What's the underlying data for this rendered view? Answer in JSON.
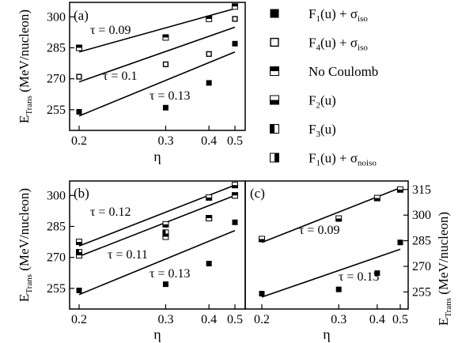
{
  "chart_data": [
    {
      "type": "scatter",
      "panel": "(a)",
      "xlabel": "η",
      "ylabel_main": "E",
      "ylabel_sub": "Trans",
      "ylabel_rest": " (MeV/nucleon)",
      "xlim": [
        0.2,
        0.5
      ],
      "ylim": [
        245,
        307
      ],
      "x_scale": "reciprocal",
      "xticks": [
        0.2,
        0.3,
        0.4,
        0.5
      ],
      "xtick_labels": [
        "0.2",
        "0.3",
        "0.4",
        "0.5"
      ],
      "yticks": [
        255,
        270,
        285,
        300
      ],
      "ytick_labels": [
        "255",
        "270",
        "285",
        "300"
      ],
      "y_axis_side": "left",
      "series": [
        {
          "marker": "filled",
          "x": [
            0.2,
            0.3,
            0.4,
            0.5
          ],
          "y": [
            254,
            256,
            268,
            287
          ]
        },
        {
          "marker": "open",
          "x": [
            0.2,
            0.3,
            0.4,
            0.5
          ],
          "y": [
            271,
            277,
            282,
            299
          ]
        },
        {
          "marker": "top-half",
          "x": [
            0.2,
            0.3,
            0.4,
            0.5
          ],
          "y": [
            285,
            290,
            299,
            305
          ]
        }
      ],
      "fit_lines": [
        {
          "label": "τ = 0.09",
          "x": [
            0.2,
            0.5
          ],
          "y": [
            283,
            304
          ]
        },
        {
          "label": "τ = 0.1",
          "x": [
            0.2,
            0.5
          ],
          "y": [
            268.5,
            295
          ]
        },
        {
          "label": "τ = 0.13",
          "x": [
            0.2,
            0.5
          ],
          "y": [
            252,
            283
          ]
        }
      ]
    },
    {
      "type": "scatter",
      "panel": "(b)",
      "xlabel": "η",
      "ylabel_main": "E",
      "ylabel_sub": "Trans",
      "ylabel_rest": " (MeV/nucleon)",
      "xlim": [
        0.2,
        0.5
      ],
      "ylim": [
        245,
        307
      ],
      "x_scale": "reciprocal",
      "xticks": [
        0.2,
        0.3,
        0.4,
        0.5
      ],
      "xtick_labels": [
        "0.2",
        "0.3",
        "0.4",
        "0.5"
      ],
      "yticks": [
        255,
        270,
        285,
        300
      ],
      "ytick_labels": [
        "255",
        "270",
        "285",
        "300"
      ],
      "y_axis_side": "left",
      "series": [
        {
          "marker": "filled",
          "x": [
            0.2,
            0.3,
            0.4,
            0.5
          ],
          "y": [
            254,
            257,
            267,
            287
          ]
        },
        {
          "marker": "bottom-half",
          "x": [
            0.2,
            0.3,
            0.4,
            0.5
          ],
          "y": [
            277.5,
            286,
            299,
            305
          ]
        },
        {
          "marker": "left-half",
          "x": [
            0.2,
            0.3,
            0.4,
            0.5
          ],
          "y": [
            272.5,
            282,
            289,
            300
          ]
        },
        {
          "marker": "top-half",
          "x": [
            0.2,
            0.3,
            0.4,
            0.5
          ],
          "y": [
            271,
            280,
            289,
            300
          ]
        }
      ],
      "fit_lines": [
        {
          "label": "τ = 0.12",
          "x": [
            0.2,
            0.5
          ],
          "y": [
            275.5,
            305
          ]
        },
        {
          "label": "τ = 0.11",
          "x": [
            0.2,
            0.5
          ],
          "y": [
            270.5,
            300
          ]
        },
        {
          "label": "τ = 0.13",
          "x": [
            0.2,
            0.5
          ],
          "y": [
            252,
            283
          ]
        }
      ]
    },
    {
      "type": "scatter",
      "panel": "(c)",
      "xlabel": "η",
      "ylabel_main": "E",
      "ylabel_sub": "Trans",
      "ylabel_rest": " (MeV/nucleon)",
      "xlim": [
        0.2,
        0.5
      ],
      "ylim": [
        245,
        320
      ],
      "x_scale": "reciprocal",
      "xticks": [
        0.2,
        0.3,
        0.4,
        0.5
      ],
      "xtick_labels": [
        "0.2",
        "0.3",
        "0.4",
        "0.5"
      ],
      "yticks": [
        255,
        270,
        285,
        300,
        315
      ],
      "ytick_labels": [
        "255",
        "270",
        "285",
        "300",
        "315"
      ],
      "y_axis_side": "right",
      "series": [
        {
          "marker": "filled",
          "x": [
            0.2,
            0.3,
            0.4,
            0.5
          ],
          "y": [
            254,
            256.5,
            266,
            284
          ]
        },
        {
          "marker": "bottom-half",
          "x": [
            0.2,
            0.3,
            0.4,
            0.5
          ],
          "y": [
            286,
            298,
            310,
            315
          ]
        }
      ],
      "fit_lines": [
        {
          "label": "τ = 0.09",
          "x": [
            0.2,
            0.5
          ],
          "y": [
            284,
            316
          ]
        },
        {
          "label": "τ = 0.13",
          "x": [
            0.2,
            0.5
          ],
          "y": [
            252,
            280
          ]
        }
      ]
    }
  ],
  "legend": {
    "placement": "top-right",
    "entries": [
      {
        "marker": "filled",
        "main": "F",
        "sub1": "1",
        "arg": "(u) + σ",
        "sub2": "iso"
      },
      {
        "marker": "open",
        "main": "F",
        "sub1": "4",
        "arg": "(u) + σ",
        "sub2": "iso"
      },
      {
        "marker": "top-half",
        "main": "No Coulomb",
        "sub1": "",
        "arg": "",
        "sub2": ""
      },
      {
        "marker": "bottom-half",
        "main": "F",
        "sub1": "2",
        "arg": "(u)",
        "sub2": ""
      },
      {
        "marker": "left-half",
        "main": "F",
        "sub1": "3",
        "arg": "(u)",
        "sub2": ""
      },
      {
        "marker": "right-half",
        "main": "F",
        "sub1": "1",
        "arg": "(u) + σ",
        "sub2": "noiso"
      }
    ]
  }
}
